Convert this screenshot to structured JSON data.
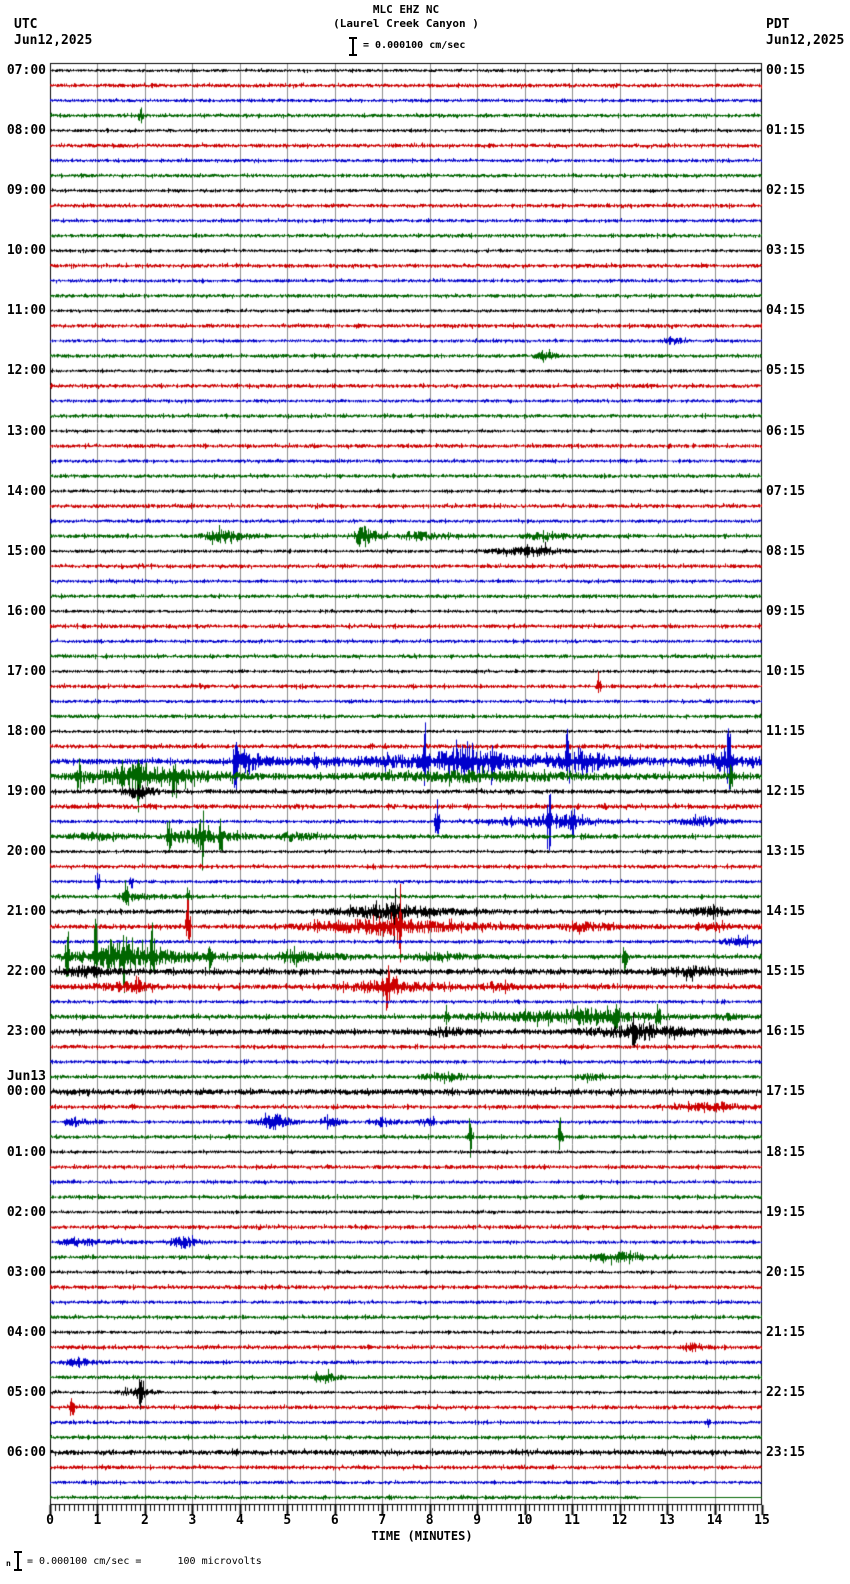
{
  "header": {
    "title_line1": "MLC EHZ NC",
    "title_line2": "(Laurel Creek Canyon )",
    "scale_text": "= 0.000100 cm/sec",
    "left_tz": "UTC",
    "left_date": "Jun12,2025",
    "right_tz": "PDT",
    "right_date": "Jun12,2025"
  },
  "axis": {
    "title": "TIME (MINUTES)",
    "tick_labels": [
      "0",
      "1",
      "2",
      "3",
      "4",
      "5",
      "6",
      "7",
      "8",
      "9",
      "10",
      "11",
      "12",
      "13",
      "14",
      "15"
    ]
  },
  "footer": {
    "glyph": "n",
    "note": "= 0.000100 cm/sec =      100 microvolts"
  },
  "left_axis_labels": [
    {
      "row": 0,
      "text": "07:00"
    },
    {
      "row": 4,
      "text": "08:00"
    },
    {
      "row": 8,
      "text": "09:00"
    },
    {
      "row": 12,
      "text": "10:00"
    },
    {
      "row": 16,
      "text": "11:00"
    },
    {
      "row": 20,
      "text": "12:00"
    },
    {
      "row": 24,
      "text": "13:00"
    },
    {
      "row": 28,
      "text": "14:00"
    },
    {
      "row": 32,
      "text": "15:00"
    },
    {
      "row": 36,
      "text": "16:00"
    },
    {
      "row": 40,
      "text": "17:00"
    },
    {
      "row": 44,
      "text": "18:00"
    },
    {
      "row": 48,
      "text": "19:00"
    },
    {
      "row": 52,
      "text": "20:00"
    },
    {
      "row": 56,
      "text": "21:00"
    },
    {
      "row": 60,
      "text": "22:00"
    },
    {
      "row": 64,
      "text": "23:00"
    },
    {
      "row": 68,
      "text": "00:00"
    },
    {
      "row": 72,
      "text": "01:00"
    },
    {
      "row": 76,
      "text": "02:00"
    },
    {
      "row": 80,
      "text": "03:00"
    },
    {
      "row": 84,
      "text": "04:00"
    },
    {
      "row": 88,
      "text": "05:00"
    },
    {
      "row": 92,
      "text": "06:00"
    }
  ],
  "date_change_label": {
    "row": 68,
    "text": "Jun13"
  },
  "right_axis_labels": [
    {
      "row": 0,
      "text": "00:15"
    },
    {
      "row": 4,
      "text": "01:15"
    },
    {
      "row": 8,
      "text": "02:15"
    },
    {
      "row": 12,
      "text": "03:15"
    },
    {
      "row": 16,
      "text": "04:15"
    },
    {
      "row": 20,
      "text": "05:15"
    },
    {
      "row": 24,
      "text": "06:15"
    },
    {
      "row": 28,
      "text": "07:15"
    },
    {
      "row": 32,
      "text": "08:15"
    },
    {
      "row": 36,
      "text": "09:15"
    },
    {
      "row": 40,
      "text": "10:15"
    },
    {
      "row": 44,
      "text": "11:15"
    },
    {
      "row": 48,
      "text": "12:15"
    },
    {
      "row": 52,
      "text": "13:15"
    },
    {
      "row": 56,
      "text": "14:15"
    },
    {
      "row": 60,
      "text": "15:15"
    },
    {
      "row": 64,
      "text": "16:15"
    },
    {
      "row": 68,
      "text": "17:15"
    },
    {
      "row": 72,
      "text": "18:15"
    },
    {
      "row": 76,
      "text": "19:15"
    },
    {
      "row": 80,
      "text": "20:15"
    },
    {
      "row": 84,
      "text": "21:15"
    },
    {
      "row": 88,
      "text": "22:15"
    },
    {
      "row": 92,
      "text": "23:15"
    }
  ],
  "chart_data": {
    "type": "line",
    "subtype": "helicorder",
    "title": "MLC EHZ NC (Laurel Creek Canyon )",
    "xlabel": "TIME (MINUTES)",
    "x_range": [
      0,
      15
    ],
    "rows": 96,
    "minutes_per_row": 15,
    "start_label_utc": "07:00 Jun12,2025",
    "end_label_utc": "06:45 Jun13",
    "grid": true,
    "grid_color": "#8c8c8c",
    "color_cycle": [
      "#000000",
      "#cc0000",
      "#0000cc",
      "#006600"
    ],
    "base_amp_by_color": [
      1.6,
      2.0,
      1.7,
      1.9
    ],
    "amplitude_scale": "0.000100 cm/sec = 100 microvolts",
    "events": [
      {
        "r": 3,
        "spikes": [
          [
            1.9,
            10
          ]
        ]
      },
      {
        "r": 18,
        "bursts": [
          [
            12.8,
            13.1,
            13.5,
            4
          ]
        ]
      },
      {
        "r": 19,
        "bursts": [
          [
            10.1,
            10.4,
            10.9,
            5.5
          ]
        ]
      },
      {
        "r": 31,
        "bursts": [
          [
            3.0,
            3.6,
            4.9,
            6
          ],
          [
            6.3,
            6.6,
            7.2,
            13
          ],
          [
            7.2,
            7.6,
            9.7,
            4
          ],
          [
            9.7,
            10.2,
            12.2,
            2.8
          ]
        ]
      },
      {
        "r": 32,
        "bursts": [
          [
            8.7,
            10.4,
            11.2,
            5
          ]
        ]
      },
      {
        "r": 41,
        "spikes": [
          [
            11.55,
            8
          ]
        ]
      },
      {
        "r": 45,
        "base": 2.2
      },
      {
        "r": 46,
        "base": 2.8,
        "bursts": [
          [
            3.6,
            8.9,
            15,
            6.5
          ],
          [
            3.8,
            4.1,
            5.0,
            11
          ],
          [
            8.0,
            8.8,
            9.7,
            13
          ],
          [
            10.4,
            11.2,
            12.3,
            11
          ],
          [
            13.3,
            14.3,
            15,
            9
          ]
        ],
        "spikes": [
          [
            3.9,
            38
          ],
          [
            5.6,
            14
          ],
          [
            7.9,
            34
          ],
          [
            9.3,
            20
          ],
          [
            10.9,
            30
          ],
          [
            14.3,
            34
          ]
        ]
      },
      {
        "r": 47,
        "base": 2.8,
        "bursts": [
          [
            0,
            2.0,
            5.0,
            12
          ],
          [
            5.0,
            9.0,
            15,
            4.5
          ]
        ],
        "spikes": [
          [
            0.6,
            16
          ],
          [
            1.85,
            30
          ],
          [
            2.6,
            22
          ],
          [
            14.35,
            18
          ]
        ]
      },
      {
        "r": 48,
        "base": 2.2,
        "bursts": [
          [
            1.3,
            1.9,
            2.5,
            7
          ]
        ]
      },
      {
        "r": 49,
        "base": 2.4
      },
      {
        "r": 50,
        "bursts": [
          [
            8.4,
            10.9,
            12.2,
            6
          ],
          [
            12.9,
            13.8,
            14.7,
            5
          ]
        ],
        "spikes": [
          [
            8.15,
            22
          ],
          [
            10.5,
            28
          ],
          [
            11.0,
            18
          ]
        ]
      },
      {
        "r": 51,
        "base": 2.2,
        "bursts": [
          [
            0,
            1.0,
            2.2,
            3.5
          ],
          [
            2.2,
            3.1,
            4.7,
            9
          ],
          [
            4.7,
            5.0,
            6.6,
            4
          ]
        ],
        "spikes": [
          [
            2.5,
            22
          ],
          [
            3.2,
            26
          ],
          [
            3.6,
            20
          ]
        ]
      },
      {
        "r": 54,
        "spikes": [
          [
            1.0,
            11
          ],
          [
            1.7,
            9
          ]
        ]
      },
      {
        "r": 55,
        "bursts": [
          [
            1.2,
            1.6,
            3.2,
            4
          ]
        ],
        "spikes": [
          [
            1.6,
            16
          ],
          [
            2.9,
            10
          ]
        ]
      },
      {
        "r": 56,
        "base": 2.2,
        "bursts": [
          [
            5.4,
            7.2,
            9.6,
            8
          ],
          [
            12.9,
            14.0,
            15,
            4
          ]
        ],
        "spikes": [
          [
            7.25,
            22
          ]
        ]
      },
      {
        "r": 57,
        "base": 2.4,
        "bursts": [
          [
            4.6,
            7.0,
            10.6,
            9
          ],
          [
            10.6,
            11.0,
            13.2,
            4.5
          ],
          [
            13.2,
            14.0,
            15,
            3
          ]
        ],
        "spikes": [
          [
            2.9,
            32
          ],
          [
            7.35,
            28
          ]
        ]
      },
      {
        "r": 58,
        "bursts": [
          [
            13.9,
            14.6,
            15,
            5
          ]
        ]
      },
      {
        "r": 59,
        "base": 2.2,
        "bursts": [
          [
            0,
            1.5,
            4.6,
            13
          ],
          [
            4.6,
            5.0,
            7.2,
            6
          ],
          [
            7.2,
            8.0,
            9.8,
            3.5
          ]
        ],
        "spikes": [
          [
            0.35,
            30
          ],
          [
            0.95,
            34
          ],
          [
            1.55,
            30
          ],
          [
            2.15,
            28
          ],
          [
            3.35,
            26
          ],
          [
            12.1,
            20
          ]
        ]
      },
      {
        "r": 60,
        "base": 3.0,
        "bursts": [
          [
            0,
            0.8,
            2.0,
            4.5
          ],
          [
            12.4,
            13.5,
            15,
            4
          ]
        ]
      },
      {
        "r": 61,
        "base": 2.5,
        "bursts": [
          [
            0.2,
            1.8,
            2.8,
            3.5
          ],
          [
            5.8,
            7.1,
            8.9,
            8
          ],
          [
            8.9,
            9.3,
            10.6,
            4
          ]
        ],
        "spikes": [
          [
            1.85,
            12
          ],
          [
            7.1,
            20
          ]
        ]
      },
      {
        "r": 63,
        "base": 2.3,
        "bursts": [
          [
            7.9,
            11.5,
            13.8,
            7.5
          ],
          [
            13.8,
            14.3,
            15,
            3
          ]
        ],
        "spikes": [
          [
            8.35,
            14
          ],
          [
            11.9,
            24
          ],
          [
            12.8,
            16
          ]
        ]
      },
      {
        "r": 64,
        "base": 2.8,
        "bursts": [
          [
            7.7,
            8.3,
            9.2,
            4
          ],
          [
            10.7,
            12.6,
            14.7,
            7
          ]
        ],
        "spikes": [
          [
            12.3,
            16
          ]
        ]
      },
      {
        "r": 67,
        "bursts": [
          [
            7.6,
            8.3,
            9.3,
            5.5
          ],
          [
            10.9,
            11.4,
            12.1,
            3
          ]
        ]
      },
      {
        "r": 68,
        "base": 3.0
      },
      {
        "r": 69,
        "bursts": [
          [
            12.4,
            14.2,
            15,
            4
          ]
        ]
      },
      {
        "r": 70,
        "bursts": [
          [
            0.2,
            0.5,
            1.2,
            4.5
          ],
          [
            4.1,
            4.8,
            5.4,
            8
          ],
          [
            5.5,
            5.9,
            6.4,
            5.5
          ],
          [
            6.6,
            7.0,
            7.6,
            5
          ],
          [
            7.6,
            8.0,
            8.6,
            3
          ]
        ]
      },
      {
        "r": 71,
        "spikes": [
          [
            8.85,
            26
          ],
          [
            10.75,
            24
          ]
        ]
      },
      {
        "r": 78,
        "bursts": [
          [
            0,
            0.5,
            2.2,
            4
          ],
          [
            2.3,
            2.8,
            3.5,
            6.5
          ]
        ]
      },
      {
        "r": 79,
        "bursts": [
          [
            10.9,
            12.0,
            13.3,
            4.5
          ]
        ]
      },
      {
        "r": 85,
        "bursts": [
          [
            13.2,
            13.6,
            14.0,
            4.5
          ]
        ]
      },
      {
        "r": 86,
        "bursts": [
          [
            0.1,
            0.6,
            1.2,
            4.5
          ]
        ]
      },
      {
        "r": 87,
        "bursts": [
          [
            5.4,
            5.8,
            6.3,
            5
          ]
        ]
      },
      {
        "r": 88,
        "bursts": [
          [
            1.3,
            1.9,
            2.4,
            6
          ]
        ],
        "spikes": [
          [
            1.9,
            12
          ]
        ]
      },
      {
        "r": 89,
        "spikes": [
          [
            0.45,
            13
          ]
        ]
      },
      {
        "r": 90,
        "spikes": [
          [
            13.85,
            7
          ]
        ]
      },
      {
        "r": 92,
        "base": 2.6
      },
      {
        "r": 95,
        "end": 12.45
      }
    ]
  }
}
